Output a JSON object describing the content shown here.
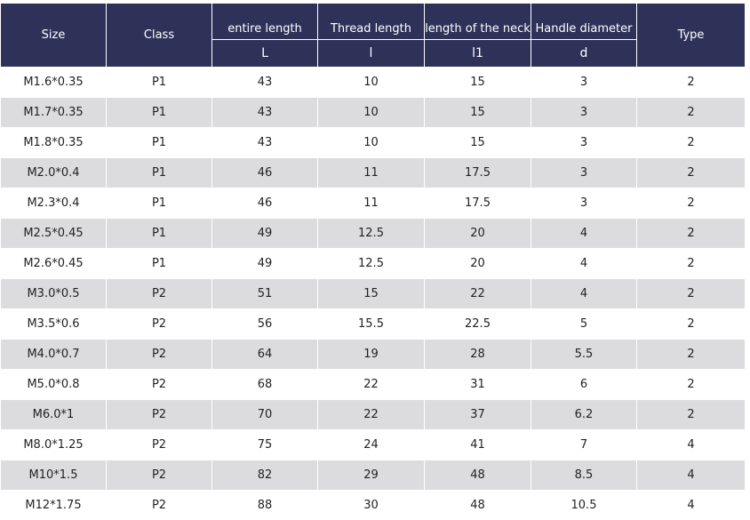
{
  "headers": {
    "size": "Size",
    "class": "Class",
    "entire_length": "entire length",
    "thread_length": "Thread length",
    "neck_length": "length of the neck",
    "handle_diameter": "Handle diameter",
    "type": "Type",
    "sym_L": "L",
    "sym_l": "l",
    "sym_l1": "l1",
    "sym_d": "d"
  },
  "rows": [
    {
      "size": "M1.6*0.35",
      "class": "P1",
      "L": "43",
      "l": "10",
      "l1": "15",
      "d": "3",
      "type": "2"
    },
    {
      "size": "M1.7*0.35",
      "class": "P1",
      "L": "43",
      "l": "10",
      "l1": "15",
      "d": "3",
      "type": "2"
    },
    {
      "size": "M1.8*0.35",
      "class": "P1",
      "L": "43",
      "l": "10",
      "l1": "15",
      "d": "3",
      "type": "2"
    },
    {
      "size": "M2.0*0.4",
      "class": "P1",
      "L": "46",
      "l": "11",
      "l1": "17.5",
      "d": "3",
      "type": "2"
    },
    {
      "size": "M2.3*0.4",
      "class": "P1",
      "L": "46",
      "l": "11",
      "l1": "17.5",
      "d": "3",
      "type": "2"
    },
    {
      "size": "M2.5*0.45",
      "class": "P1",
      "L": "49",
      "l": "12.5",
      "l1": "20",
      "d": "4",
      "type": "2"
    },
    {
      "size": "M2.6*0.45",
      "class": "P1",
      "L": "49",
      "l": "12.5",
      "l1": "20",
      "d": "4",
      "type": "2"
    },
    {
      "size": "M3.0*0.5",
      "class": "P2",
      "L": "51",
      "l": "15",
      "l1": "22",
      "d": "4",
      "type": "2"
    },
    {
      "size": "M3.5*0.6",
      "class": "P2",
      "L": "56",
      "l": "15.5",
      "l1": "22.5",
      "d": "5",
      "type": "2"
    },
    {
      "size": "M4.0*0.7",
      "class": "P2",
      "L": "64",
      "l": "19",
      "l1": "28",
      "d": "5.5",
      "type": "2"
    },
    {
      "size": "M5.0*0.8",
      "class": "P2",
      "L": "68",
      "l": "22",
      "l1": "31",
      "d": "6",
      "type": "2"
    },
    {
      "size": "M6.0*1",
      "class": "P2",
      "L": "70",
      "l": "22",
      "l1": "37",
      "d": "6.2",
      "type": "2"
    },
    {
      "size": "M8.0*1.25",
      "class": "P2",
      "L": "75",
      "l": "24",
      "l1": "41",
      "d": "7",
      "type": "4"
    },
    {
      "size": "M10*1.5",
      "class": "P2",
      "L": "82",
      "l": "29",
      "l1": "48",
      "d": "8.5",
      "type": "4"
    },
    {
      "size": "M12*1.75",
      "class": "P2",
      "L": "88",
      "l": "30",
      "l1": "48",
      "d": "10.5",
      "type": "4"
    }
  ],
  "colors": {
    "header_bg": "#2e3259",
    "row_alt_bg": "#dcdcde"
  }
}
